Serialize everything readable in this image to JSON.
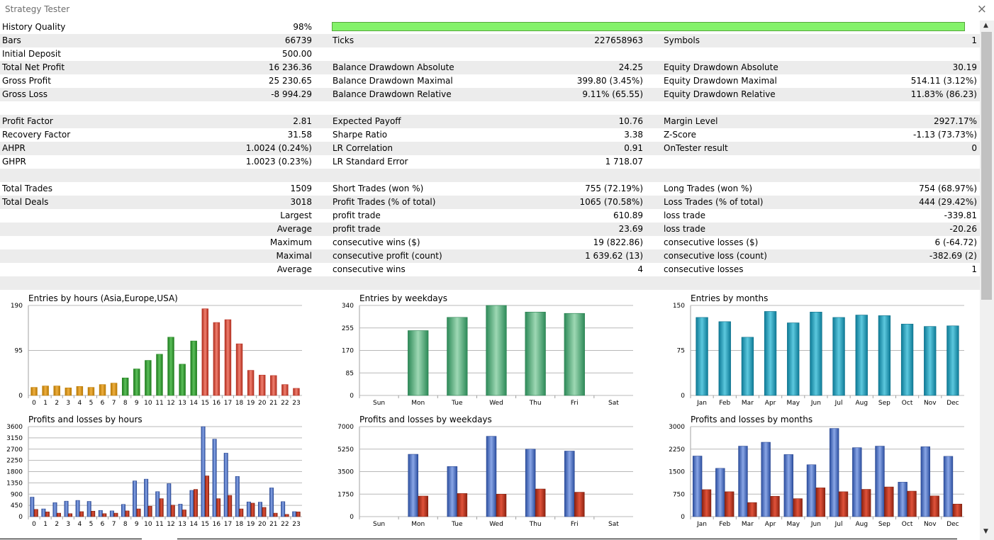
{
  "window": {
    "title": "Strategy Tester",
    "close_icon": "×"
  },
  "scroll": {
    "up": "▲",
    "down": "▼"
  },
  "stats": {
    "r0": {
      "l1": "History Quality",
      "v1": "98%",
      "quality": 0.98
    },
    "r1": {
      "l1": "Bars",
      "v1": "66739",
      "l2": "Ticks",
      "v2": "227658963",
      "l3": "Symbols",
      "v3": "1"
    },
    "r2": {
      "l1": "Initial Deposit",
      "v1": "500.00"
    },
    "r3": {
      "l1": "Total Net Profit",
      "v1": "16 236.36",
      "l2": "Balance Drawdown Absolute",
      "v2": "24.25",
      "l3": "Equity Drawdown Absolute",
      "v3": "30.19"
    },
    "r4": {
      "l1": "Gross Profit",
      "v1": "25 230.65",
      "l2": "Balance Drawdown Maximal",
      "v2": "399.80 (3.45%)",
      "l3": "Equity Drawdown Maximal",
      "v3": "514.11 (3.12%)"
    },
    "r5": {
      "l1": "Gross Loss",
      "v1": "-8 994.29",
      "l2": "Balance Drawdown Relative",
      "v2": "9.11% (65.55)",
      "l3": "Equity Drawdown Relative",
      "v3": "11.83% (86.23)"
    },
    "r7": {
      "l1": "Profit Factor",
      "v1": "2.81",
      "l2": "Expected Payoff",
      "v2": "10.76",
      "l3": "Margin Level",
      "v3": "2927.17%"
    },
    "r8": {
      "l1": "Recovery Factor",
      "v1": "31.58",
      "l2": "Sharpe Ratio",
      "v2": "3.38",
      "l3": "Z-Score",
      "v3": "-1.13 (73.73%)"
    },
    "r9": {
      "l1": "AHPR",
      "v1": "1.0024 (0.24%)",
      "l2": "LR Correlation",
      "v2": "0.91",
      "l3": "OnTester result",
      "v3": "0"
    },
    "r10": {
      "l1": "GHPR",
      "v1": "1.0023 (0.23%)",
      "l2": "LR Standard Error",
      "v2": "1 718.07"
    },
    "r12": {
      "l1": "Total Trades",
      "v1": "1509",
      "l2": "Short Trades (won %)",
      "v2": "755 (72.19%)",
      "l3": "Long Trades (won %)",
      "v3": "754 (68.97%)"
    },
    "r13": {
      "l1": "Total Deals",
      "v1": "3018",
      "l2": "Profit Trades (% of total)",
      "v2": "1065 (70.58%)",
      "l3": "Loss Trades (% of total)",
      "v3": "444 (29.42%)"
    },
    "r14": {
      "v1": "Largest",
      "l2": "profit trade",
      "v2": "610.89",
      "l3": "loss trade",
      "v3": "-339.81"
    },
    "r15": {
      "v1": "Average",
      "l2": "profit trade",
      "v2": "23.69",
      "l3": "loss trade",
      "v3": "-20.26"
    },
    "r16": {
      "v1": "Maximum",
      "l2": "consecutive wins ($)",
      "v2": "19 (822.86)",
      "l3": "consecutive losses ($)",
      "v3": "6 (-64.72)"
    },
    "r17": {
      "v1": "Maximal",
      "l2": "consecutive profit (count)",
      "v2": "1 639.62 (13)",
      "l3": "consecutive loss (count)",
      "v3": "-382.69 (2)"
    },
    "r18": {
      "v1": "Average",
      "l2": "consecutive wins",
      "v2": "4",
      "l3": "consecutive losses",
      "v3": "1"
    }
  },
  "colors": {
    "quality_bar": "#84f26a",
    "row_alt": "#ececec",
    "profit": "#4466bb",
    "loss": "#b03018",
    "weekday": "#4aa872",
    "month": "#1f95b0"
  },
  "chart_data": [
    {
      "type": "bar",
      "title": "Entries by hours (Asia,Europe,USA)",
      "categories": [
        "0",
        "1",
        "2",
        "3",
        "4",
        "5",
        "6",
        "7",
        "8",
        "9",
        "10",
        "11",
        "12",
        "13",
        "14",
        "15",
        "16",
        "17",
        "18",
        "19",
        "20",
        "21",
        "22",
        "23"
      ],
      "values": [
        17,
        20,
        20,
        16,
        19,
        17,
        23,
        26,
        37,
        56,
        74,
        87,
        123,
        66,
        115,
        183,
        154,
        160,
        109,
        53,
        43,
        42,
        23,
        15
      ],
      "ylim": [
        0,
        190
      ],
      "yticks": [
        0,
        95,
        190
      ],
      "session_colors": [
        "#c07f08",
        "#2c8a28",
        "#b8362a"
      ],
      "sessions": [
        0,
        0,
        0,
        0,
        0,
        0,
        0,
        0,
        1,
        1,
        1,
        1,
        1,
        1,
        1,
        2,
        2,
        2,
        2,
        2,
        2,
        2,
        2,
        2
      ]
    },
    {
      "type": "bar",
      "title": "Entries by weekdays",
      "categories": [
        "Sun",
        "Mon",
        "Tue",
        "Wed",
        "Thu",
        "Fri",
        "Sat"
      ],
      "values": [
        0,
        245,
        295,
        340,
        315,
        310,
        0
      ],
      "ylim": [
        0,
        340
      ],
      "yticks": [
        0,
        85,
        170,
        255,
        340
      ]
    },
    {
      "type": "bar",
      "title": "Entries by months",
      "categories": [
        "Jan",
        "Feb",
        "Mar",
        "Apr",
        "May",
        "Jun",
        "Jul",
        "Aug",
        "Sep",
        "Oct",
        "Nov",
        "Dec"
      ],
      "values": [
        130,
        123,
        97,
        140,
        121,
        139,
        130,
        134,
        133,
        119,
        115,
        116
      ],
      "ylim": [
        0,
        150
      ],
      "yticks": [
        0,
        75,
        150
      ]
    },
    {
      "type": "bar",
      "title": "Profits and losses by hours",
      "categories": [
        "0",
        "1",
        "2",
        "3",
        "4",
        "5",
        "6",
        "7",
        "8",
        "9",
        "10",
        "11",
        "12",
        "13",
        "14",
        "15",
        "16",
        "17",
        "18",
        "19",
        "20",
        "21",
        "22",
        "23"
      ],
      "series": [
        {
          "values": [
            780,
            310,
            560,
            620,
            650,
            610,
            250,
            230,
            490,
            1430,
            1500,
            1000,
            1320,
            500,
            1050,
            3600,
            3100,
            2540,
            1610,
            590,
            580,
            1150,
            600,
            200
          ]
        },
        {
          "values": [
            290,
            190,
            140,
            120,
            200,
            220,
            120,
            140,
            230,
            310,
            420,
            720,
            460,
            270,
            1090,
            1630,
            720,
            850,
            310,
            540,
            370,
            140,
            90,
            190
          ]
        }
      ],
      "ylim": [
        0,
        3600
      ],
      "yticks": [
        0,
        450,
        900,
        1350,
        1800,
        2250,
        2700,
        3150,
        3600
      ]
    },
    {
      "type": "bar",
      "title": "Profits and losses by weekdays",
      "categories": [
        "Sun",
        "Mon",
        "Tue",
        "Wed",
        "Thu",
        "Fri",
        "Sat"
      ],
      "series": [
        {
          "values": [
            0,
            4850,
            3900,
            6250,
            5250,
            5100,
            0
          ]
        },
        {
          "values": [
            0,
            1600,
            1800,
            1750,
            2150,
            1900,
            0
          ]
        }
      ],
      "ylim": [
        0,
        7000
      ],
      "yticks": [
        0,
        1750,
        3500,
        5250,
        7000
      ]
    },
    {
      "type": "bar",
      "title": "Profits and losses by months",
      "categories": [
        "Jan",
        "Feb",
        "Mar",
        "Apr",
        "May",
        "Jun",
        "Jul",
        "Aug",
        "Sep",
        "Oct",
        "Nov",
        "Dec"
      ],
      "series": [
        {
          "values": [
            2020,
            1610,
            2350,
            2480,
            2070,
            1730,
            2940,
            2300,
            2350,
            1150,
            2330,
            2010
          ]
        },
        {
          "values": [
            900,
            830,
            470,
            680,
            600,
            960,
            830,
            910,
            990,
            850,
            690,
            420
          ]
        }
      ],
      "ylim": [
        0,
        3000
      ],
      "yticks": [
        0,
        750,
        1500,
        2250,
        3000
      ]
    }
  ]
}
